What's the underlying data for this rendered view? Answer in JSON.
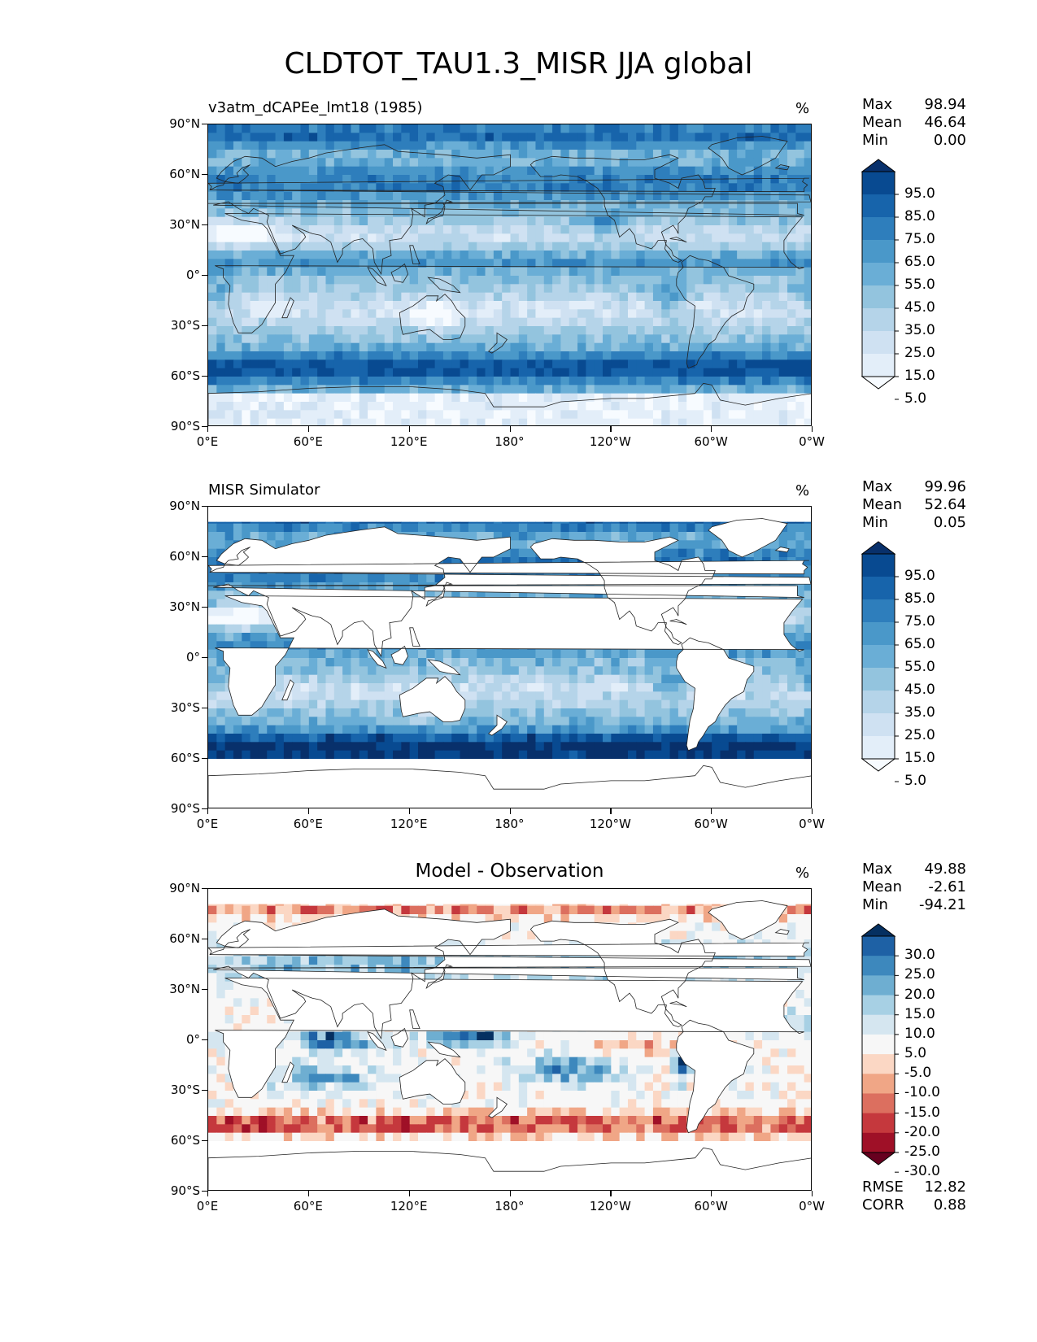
{
  "figure": {
    "title": "CLDTOT_TAU1.3_MISR JJA global"
  },
  "axes": {
    "y_ticks": [
      "90°N",
      "60°N",
      "30°N",
      "0°",
      "30°S",
      "60°S",
      "90°S"
    ],
    "x_ticks": [
      "0°E",
      "60°E",
      "120°E",
      "180°",
      "120°W",
      "60°W",
      "0°W"
    ]
  },
  "panels": [
    {
      "title": "v3atm_dCAPEe_lmt18 (1985)",
      "unit": "%",
      "stats": [
        {
          "label": "Max",
          "value": "98.94"
        },
        {
          "label": "Mean",
          "value": "46.64"
        },
        {
          "label": "Min",
          "value": "0.00"
        }
      ],
      "colorbar": {
        "labels": [
          "95.0",
          "85.0",
          "75.0",
          "65.0",
          "55.0",
          "45.0",
          "35.0",
          "25.0",
          "15.0",
          "5.0"
        ],
        "colors": [
          "#f7fbff",
          "#e3eef9",
          "#cfe1f2",
          "#b5d4e9",
          "#93c4de",
          "#6aaed6",
          "#4a98c9",
          "#2e7ebc",
          "#1764ab",
          "#084a91",
          "#08306b"
        ]
      }
    },
    {
      "title": "MISR Simulator",
      "unit": "%",
      "stats": [
        {
          "label": "Max",
          "value": "99.96"
        },
        {
          "label": "Mean",
          "value": "52.64"
        },
        {
          "label": "Min",
          "value": "0.05"
        }
      ],
      "colorbar": {
        "labels": [
          "95.0",
          "85.0",
          "75.0",
          "65.0",
          "55.0",
          "45.0",
          "35.0",
          "25.0",
          "15.0",
          "5.0"
        ],
        "colors": [
          "#f7fbff",
          "#e3eef9",
          "#cfe1f2",
          "#b5d4e9",
          "#93c4de",
          "#6aaed6",
          "#4a98c9",
          "#2e7ebc",
          "#1764ab",
          "#084a91",
          "#08306b"
        ]
      }
    },
    {
      "title": "Model - Observation",
      "unit": "%",
      "stats": [
        {
          "label": "Max",
          "value": "49.88"
        },
        {
          "label": "Mean",
          "value": "-2.61"
        },
        {
          "label": "Min",
          "value": "-94.21"
        }
      ],
      "colorbar": {
        "labels": [
          "30.0",
          "25.0",
          "20.0",
          "15.0",
          "10.0",
          "5.0",
          "-5.0",
          "-10.0",
          "-15.0",
          "-20.0",
          "-25.0",
          "-30.0"
        ],
        "colors": [
          "#67001f",
          "#9f1027",
          "#c5383d",
          "#dc6f5f",
          "#f0a686",
          "#fbd7c4",
          "#f7f7f7",
          "#d5e6f0",
          "#a7d0e4",
          "#6eaed1",
          "#3d88bd",
          "#1e61a5",
          "#053061"
        ]
      },
      "metrics": [
        {
          "label": "RMSE",
          "value": "12.82"
        },
        {
          "label": "CORR",
          "value": "0.88"
        }
      ]
    }
  ],
  "chart_data": [
    {
      "type": "heatmap",
      "title": "v3atm_dCAPEe_lmt18 (1985)",
      "variable": "CLDTOT_TAU1.3_MISR",
      "season": "JJA",
      "units": "%",
      "x_range": [
        0,
        360
      ],
      "y_range": [
        -90,
        90
      ],
      "x_tick_labels": [
        "0°E",
        "60°E",
        "120°E",
        "180°",
        "120°W",
        "60°W",
        "0°W"
      ],
      "y_tick_labels": [
        "90°N",
        "60°N",
        "30°N",
        "0°",
        "30°S",
        "60°S",
        "90°S"
      ],
      "color_levels": [
        5,
        15,
        25,
        35,
        45,
        55,
        65,
        75,
        85,
        95
      ],
      "extend": "both",
      "colormap": "Blues",
      "stats": {
        "max": 98.94,
        "mean": 46.64,
        "min": 0.0
      }
    },
    {
      "type": "heatmap",
      "title": "MISR Simulator",
      "units": "%",
      "x_range": [
        0,
        360
      ],
      "y_range": [
        -90,
        90
      ],
      "color_levels": [
        5,
        15,
        25,
        35,
        45,
        55,
        65,
        75,
        85,
        95
      ],
      "extend": "both",
      "colormap": "Blues",
      "stats": {
        "max": 99.96,
        "mean": 52.64,
        "min": 0.05
      }
    },
    {
      "type": "heatmap",
      "title": "Model - Observation",
      "units": "%",
      "x_range": [
        0,
        360
      ],
      "y_range": [
        -90,
        90
      ],
      "color_levels": [
        -30,
        -25,
        -20,
        -15,
        -10,
        -5,
        5,
        10,
        15,
        20,
        25,
        30
      ],
      "extend": "both",
      "colormap": "RdBu_r",
      "stats": {
        "max": 49.88,
        "mean": -2.61,
        "min": -94.21,
        "rmse": 12.82,
        "corr": 0.88
      }
    }
  ]
}
